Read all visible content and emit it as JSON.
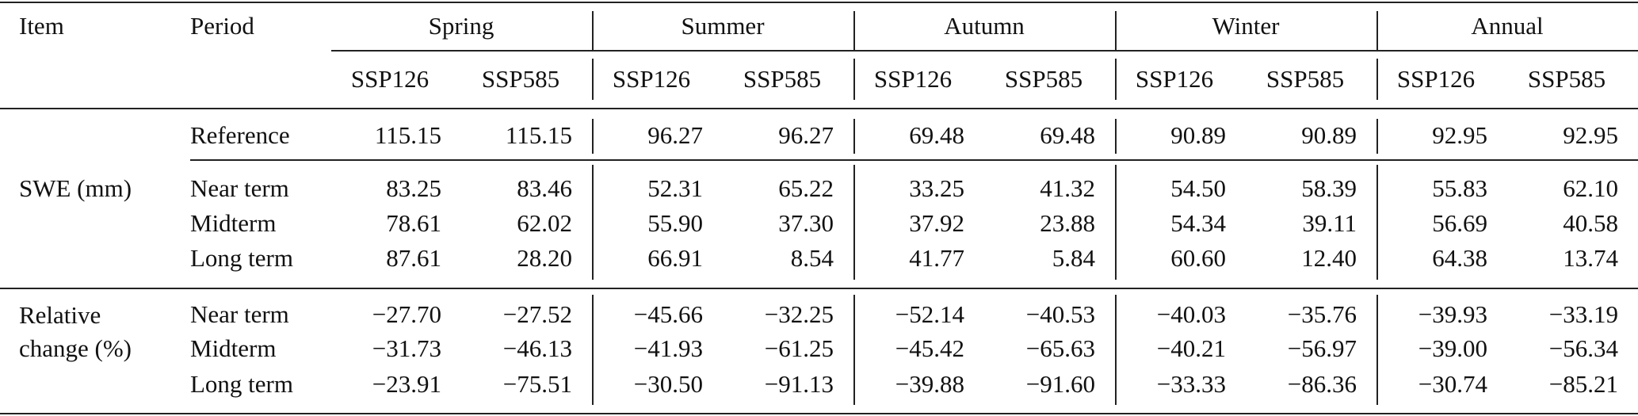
{
  "header": {
    "item": "Item",
    "period": "Period",
    "groups": [
      "Spring",
      "Summer",
      "Autumn",
      "Winter",
      "Annual"
    ],
    "scenarios": [
      "SSP126",
      "SSP585"
    ]
  },
  "sections": [
    {
      "label_lines": [
        "SWE (mm)"
      ],
      "rows": [
        {
          "period": "Reference",
          "values": [
            "115.15",
            "115.15",
            "96.27",
            "96.27",
            "69.48",
            "69.48",
            "90.89",
            "90.89",
            "92.95",
            "92.95"
          ]
        },
        {
          "period": "Near term",
          "values": [
            "83.25",
            "83.46",
            "52.31",
            "65.22",
            "33.25",
            "41.32",
            "54.50",
            "58.39",
            "55.83",
            "62.10"
          ]
        },
        {
          "period": "Midterm",
          "values": [
            "78.61",
            "62.02",
            "55.90",
            "37.30",
            "37.92",
            "23.88",
            "54.34",
            "39.11",
            "56.69",
            "40.58"
          ]
        },
        {
          "period": "Long term",
          "values": [
            "87.61",
            "28.20",
            "66.91",
            "8.54",
            "41.77",
            "5.84",
            "60.60",
            "12.40",
            "64.38",
            "13.74"
          ]
        }
      ]
    },
    {
      "label_lines": [
        "Relative",
        "change (%)"
      ],
      "rows": [
        {
          "period": "Near term",
          "values": [
            "−27.70",
            "−27.52",
            "−45.66",
            "−32.25",
            "−52.14",
            "−40.53",
            "−40.03",
            "−35.76",
            "−39.93",
            "−33.19"
          ]
        },
        {
          "period": "Midterm",
          "values": [
            "−31.73",
            "−46.13",
            "−41.93",
            "−61.25",
            "−45.42",
            "−65.63",
            "−40.21",
            "−56.97",
            "−39.00",
            "−56.34"
          ]
        },
        {
          "period": "Long term",
          "values": [
            "−23.91",
            "−75.51",
            "−30.50",
            "−91.13",
            "−39.88",
            "−91.60",
            "−33.33",
            "−86.36",
            "−30.74",
            "−85.21"
          ]
        }
      ]
    }
  ]
}
